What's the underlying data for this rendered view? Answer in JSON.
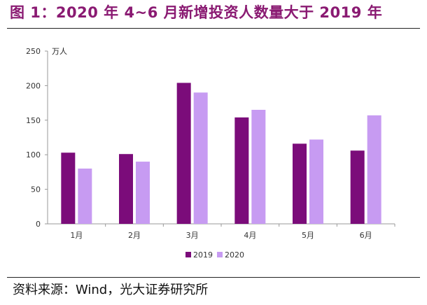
{
  "figure": {
    "title": "图 1：2020 年 4~6 月新增投资人数量大于 2019 年",
    "source": "资料来源：Wind，光大证券研究所",
    "colors": {
      "title": "#8a1a72",
      "series_2019": "#7b0c7a",
      "series_2020": "#c79bf2"
    }
  },
  "chart_data": {
    "type": "bar",
    "categories": [
      "1月",
      "2月",
      "3月",
      "4月",
      "5月",
      "6月"
    ],
    "series": [
      {
        "name": "2019",
        "values": [
          103,
          101,
          204,
          154,
          116,
          106
        ]
      },
      {
        "name": "2020",
        "values": [
          80,
          90,
          190,
          165,
          122,
          157
        ]
      }
    ],
    "unit": "万人",
    "ylim": [
      0,
      250
    ],
    "yticks": [
      "0",
      "50",
      "100",
      "150",
      "200",
      "250"
    ],
    "grid": false,
    "legend": "bottom-center"
  }
}
